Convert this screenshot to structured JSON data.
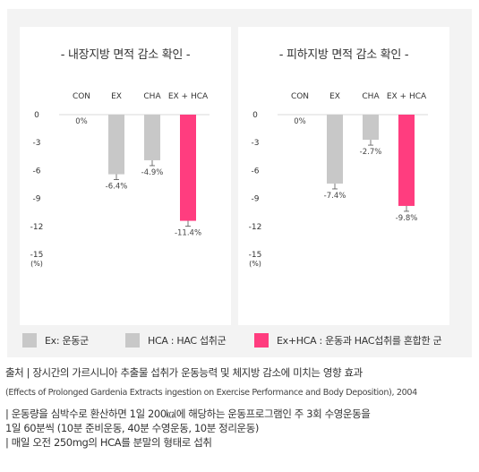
{
  "chart_data": [
    {
      "type": "bar",
      "title": "- 내장지방 면적 감소 확인 -",
      "categories": [
        "CON",
        "EX",
        "CHA",
        "EX + HCA"
      ],
      "values": [
        0,
        -6.4,
        -4.9,
        -11.4
      ],
      "value_labels": [
        "0%",
        "-6.4%",
        "-4.9%",
        "-11.4%"
      ],
      "colors": [
        "#c8c8c8",
        "#c8c8c8",
        "#c8c8c8",
        "#ff3d7f"
      ],
      "y_ticks": [
        "0",
        "-3",
        "-6",
        "-9",
        "-12",
        "-15"
      ],
      "ylim": [
        -15,
        0
      ],
      "yunit": "(%)"
    },
    {
      "type": "bar",
      "title": "- 피하지방 면적 감소 확인 -",
      "categories": [
        "CON",
        "EX",
        "CHA",
        "EX + HCA"
      ],
      "values": [
        0,
        -7.4,
        -2.7,
        -9.8
      ],
      "value_labels": [
        "0%",
        "-7.4%",
        "-2.7%",
        "-9.8%"
      ],
      "colors": [
        "#c8c8c8",
        "#c8c8c8",
        "#c8c8c8",
        "#ff3d7f"
      ],
      "y_ticks": [
        "0",
        "-3",
        "-6",
        "-9",
        "-12",
        "-15"
      ],
      "ylim": [
        -15,
        0
      ],
      "yunit": "(%)"
    }
  ],
  "legend": [
    {
      "label": "Ex: 운동군",
      "color": "#c8c8c8"
    },
    {
      "label": "HCA : HAC 섭취군",
      "color": "#c8c8c8"
    },
    {
      "label": "Ex+HCA : 운동과 HAC섭취를 혼합한 군",
      "color": "#ff3d7f"
    }
  ],
  "source": {
    "line1": "출처  | 장시간의 가르시니아 추출물 섭취가 운동능력 및 체지방 감소에 미치는 영향 효과",
    "line2": "(Effects of Prolonged Gardenia Extracts ingestion on Exercise Performance and Body Deposition), 2004"
  },
  "notes": [
    "| 운동량을 심박수로 환산하면 1일 200㎉에 해당하는 운동프로그램인 주 3회 수영운동을",
    " 1일 60분씩 (10분 준비운동, 40분 수영운동, 10분 정리운동)",
    "| 매일 오전 250mg의 HCA를 분말의 형태로 섭취"
  ]
}
